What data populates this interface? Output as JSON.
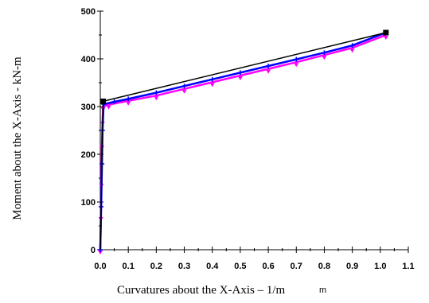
{
  "chart_data": {
    "type": "line",
    "xlabel": "Curvatures about the X-Axis – 1/m",
    "ylabel": "Moment about the X-Axis - kN-m",
    "corner_mark": "m",
    "xlim": [
      0,
      1.1
    ],
    "ylim": [
      0,
      500
    ],
    "x_ticks": [
      "0.0",
      "0.1",
      "0.2",
      "0.3",
      "0.4",
      "0.5",
      "0.6",
      "0.7",
      "0.8",
      "0.9",
      "1.0",
      "1.1"
    ],
    "y_ticks": [
      "0",
      "100",
      "200",
      "300",
      "400",
      "500"
    ],
    "series": [
      {
        "color": "#ff00ff",
        "marker": "triangle",
        "x": [
          0,
          0.002,
          0.004,
          0.006,
          0.008,
          0.01,
          0.03,
          0.1,
          0.2,
          0.3,
          0.4,
          0.5,
          0.6,
          0.7,
          0.8,
          0.9,
          1.02
        ],
        "y": [
          0,
          70,
          140,
          220,
          270,
          300,
          304,
          312,
          323,
          337,
          351,
          365,
          379,
          393,
          408,
          423,
          450
        ]
      },
      {
        "color": "#0000ff",
        "marker": "plus",
        "x": [
          0,
          0.003,
          0.006,
          0.008,
          0.012,
          0.05,
          0.1,
          0.2,
          0.3,
          0.4,
          0.5,
          0.6,
          0.7,
          0.8,
          0.9,
          1.02
        ],
        "y": [
          0,
          90,
          180,
          250,
          305,
          310,
          316,
          329,
          343,
          357,
          371,
          385,
          399,
          413,
          428,
          455
        ]
      },
      {
        "color": "#000000",
        "marker": "square",
        "x": [
          0,
          0.01,
          1.02
        ],
        "y": [
          0,
          311,
          455
        ]
      }
    ]
  }
}
